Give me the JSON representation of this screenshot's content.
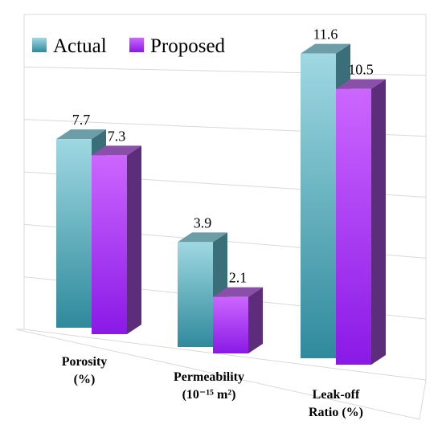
{
  "chart_data": {
    "type": "bar",
    "title": "",
    "xlabel": "",
    "ylabel": "",
    "categories": [
      {
        "lines": [
          "Porosity",
          "(%)"
        ]
      },
      {
        "lines": [
          "Permeability",
          "(10⁻¹⁵ m²)"
        ]
      },
      {
        "lines": [
          "Leak-off",
          "Ratio (%)"
        ]
      }
    ],
    "series": [
      {
        "name": "Actual",
        "values": [
          7.7,
          3.9,
          11.6
        ],
        "labels": [
          "7.7",
          "3.9",
          "11.6"
        ]
      },
      {
        "name": "Proposed",
        "values": [
          7.3,
          2.1,
          10.5
        ],
        "labels": [
          "7.3",
          "2.1",
          "10.5"
        ]
      }
    ],
    "ylim": [
      0,
      12
    ],
    "grid": true,
    "legend_position": "top-left",
    "colors": {
      "actual_front_top": "#9fd8e2",
      "actual_front_bottom": "#2f8a9c",
      "actual_top": "#6d9ea8",
      "actual_side": "#3a6f7a",
      "proposed_front_top": "#cc66ff",
      "proposed_front_bottom": "#8a19e6",
      "proposed_top": "#8a4fa8",
      "proposed_side": "#5c2d7a"
    }
  }
}
